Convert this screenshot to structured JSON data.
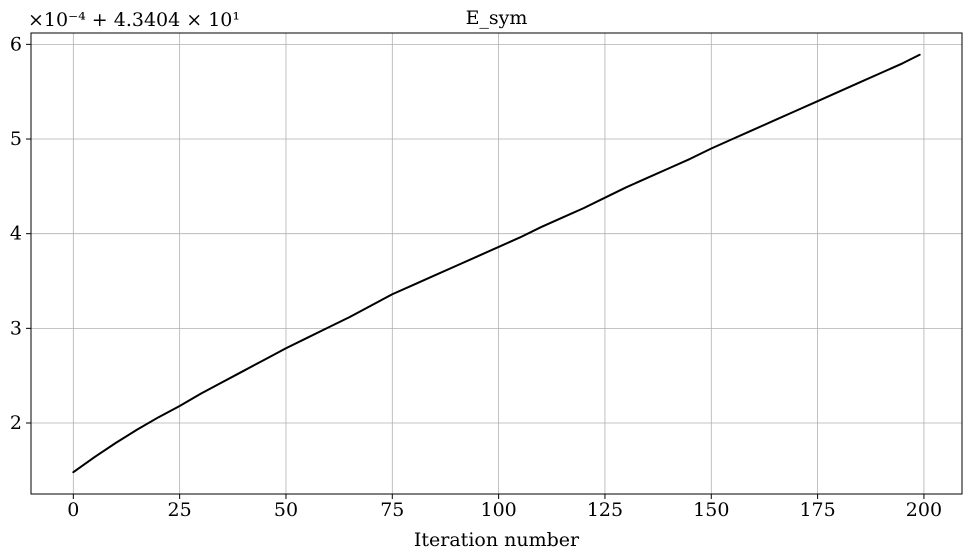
{
  "chart_data": {
    "type": "line",
    "title": "E_sym",
    "xlabel": "Iteration number",
    "ylabel": "",
    "offset_label": "×10⁻⁴ + 4.3404 × 10¹",
    "xlim": [
      -9.95,
      208.95
    ],
    "ylim": [
      1.25,
      6.12
    ],
    "xticks": [
      0,
      25,
      50,
      75,
      100,
      125,
      150,
      175,
      200
    ],
    "yticks": [
      2,
      3,
      4,
      5,
      6
    ],
    "grid": true,
    "colors": {
      "line": "#000000",
      "grid": "#b0b0b0"
    },
    "series": [
      {
        "x": [
          0,
          5,
          10,
          15,
          20,
          25,
          30,
          35,
          40,
          45,
          50,
          55,
          60,
          65,
          70,
          75,
          80,
          85,
          90,
          95,
          100,
          105,
          110,
          115,
          120,
          125,
          130,
          135,
          140,
          145,
          150,
          155,
          160,
          165,
          170,
          175,
          180,
          185,
          190,
          195,
          199
        ],
        "y": [
          1.48,
          1.64,
          1.79,
          1.93,
          2.06,
          2.18,
          2.31,
          2.43,
          2.55,
          2.67,
          2.79,
          2.9,
          3.01,
          3.12,
          3.24,
          3.36,
          3.46,
          3.56,
          3.66,
          3.76,
          3.86,
          3.96,
          4.07,
          4.17,
          4.27,
          4.38,
          4.49,
          4.59,
          4.69,
          4.79,
          4.9,
          5.0,
          5.1,
          5.2,
          5.3,
          5.4,
          5.5,
          5.6,
          5.7,
          5.8,
          5.89
        ]
      }
    ]
  }
}
